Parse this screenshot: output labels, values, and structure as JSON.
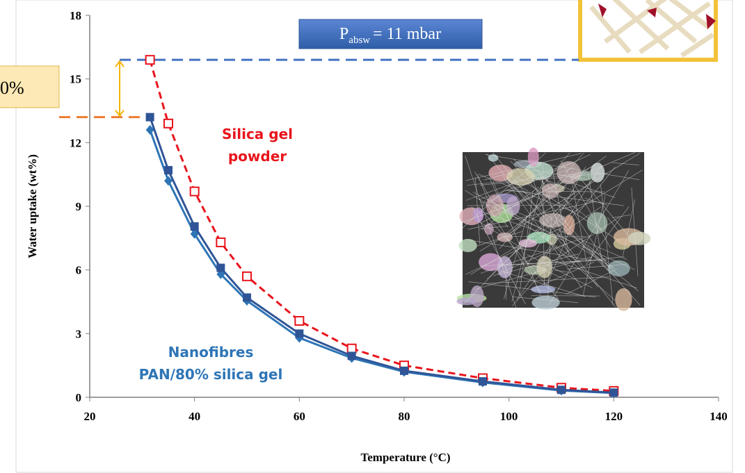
{
  "chart_data": {
    "type": "line",
    "x_label": "Temperature (°C)",
    "y_label": "Water uptake (wt%)",
    "x": [
      31.5,
      35,
      40,
      45,
      50,
      60,
      70,
      80,
      95,
      110,
      120
    ],
    "series": [
      {
        "color": "#e8141c",
        "marker": "open-square",
        "dashed": true,
        "values": [
          15.9,
          12.9,
          9.7,
          7.3,
          5.7,
          3.6,
          2.3,
          1.5,
          0.9,
          0.45,
          0.3
        ]
      },
      {
        "color": "#2e75b6",
        "marker": "diamond",
        "dashed": false,
        "values": [
          12.6,
          10.2,
          7.7,
          5.8,
          4.55,
          2.8,
          1.85,
          1.2,
          0.7,
          0.32,
          0.2
        ]
      },
      {
        "color": "#2f5597",
        "marker": "square",
        "dashed": false,
        "values": [
          13.2,
          10.7,
          8.05,
          6.1,
          4.7,
          3.0,
          1.95,
          1.25,
          0.75,
          0.35,
          0.22
        ]
      }
    ],
    "xlim": [
      20,
      140
    ],
    "xticks": [
      20,
      40,
      60,
      80,
      100,
      120,
      140
    ],
    "ylim": [
      0,
      18
    ],
    "yticks": [
      0,
      3,
      6,
      9,
      12,
      15,
      18
    ],
    "reference_lines": [
      {
        "value": 15.9,
        "color": "#4472c4"
      },
      {
        "value": 13.2,
        "color": "#ed7d31"
      }
    ],
    "annotations": [
      {
        "lines": [
          "Silica gel",
          "powder"
        ],
        "color": "#e8141c"
      },
      {
        "lines": [
          "Nanofibres",
          "PAN/80% silica gel"
        ],
        "color": "#2e75b6"
      }
    ],
    "pressure_label": {
      "symbol": "P",
      "subscript": "absw",
      "text": "= 11 mbar"
    },
    "side_label": "0%"
  }
}
